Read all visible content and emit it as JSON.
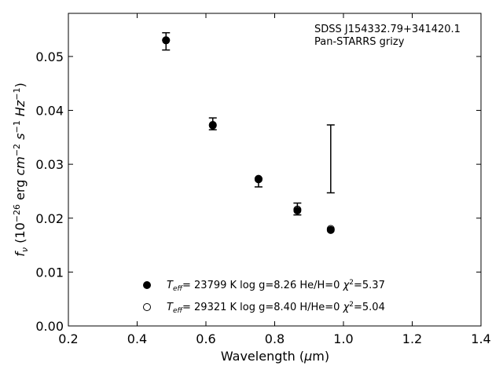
{
  "chart_data": {
    "type": "scatter",
    "xlabel": "Wavelength (μm)",
    "ylabel": "f_ν (10^-26 erg cm^-2 s^-1 Hz^-1)",
    "xlim": [
      0.2,
      1.4
    ],
    "ylim": [
      0.0,
      0.058
    ],
    "xticks": [
      "0.2",
      "0.4",
      "0.6",
      "0.8",
      "1.0",
      "1.2",
      "1.4"
    ],
    "yticks": [
      "0.00",
      "0.01",
      "0.02",
      "0.03",
      "0.04",
      "0.05"
    ],
    "grid": false,
    "annotation": [
      "SDSS J154332.79+341420.1",
      "Pan-STARRS grizy"
    ],
    "observed": {
      "x": [
        0.484,
        0.62,
        0.753,
        0.866,
        0.963
      ],
      "y": [
        0.0528,
        0.0375,
        0.0266,
        0.0217,
        0.031
      ],
      "yerr": [
        0.0016,
        0.0011,
        0.0008,
        0.0011,
        0.0063
      ]
    },
    "series": [
      {
        "name": "Teff= 23799 K  log g=8.26  He/H=0  χ2=5.37",
        "marker": "filled-circle",
        "x": [
          0.484,
          0.62,
          0.753,
          0.866,
          0.963
        ],
        "y": [
          0.053,
          0.0372,
          0.0272,
          0.0214,
          0.0178
        ]
      },
      {
        "name": "Teff= 29321 K  log g=8.40  H/He=0  χ2=5.04",
        "marker": "open-circle",
        "x": [
          0.484,
          0.62,
          0.753,
          0.866,
          0.963
        ],
        "y": [
          0.053,
          0.0373,
          0.0273,
          0.0216,
          0.018
        ]
      }
    ],
    "legend_position": "lower-center"
  }
}
